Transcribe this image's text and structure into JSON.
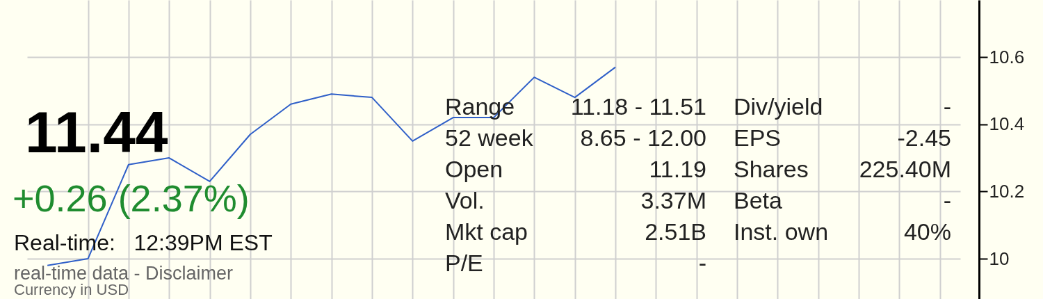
{
  "chart_data": {
    "type": "line",
    "title": "11.44",
    "subtitle": "+0.26 (2.37%)",
    "annotations": [
      "Real-time:   12:39PM EST",
      "real-time data - Disclaimer",
      "Currency in USD",
      "Range",
      "11.18 - 11.51",
      "Div/yield",
      "-",
      "52 week",
      "8.65 - 12.00",
      "EPS",
      "-2.45",
      "Open",
      "11.19",
      "Shares",
      "225.40M",
      "Vol.",
      "3.37M",
      "Beta",
      "-",
      "Mkt cap",
      "2.51B",
      "Inst. own",
      "40%",
      "P/E",
      "-"
    ],
    "categories": [
      null,
      null,
      null,
      null,
      null,
      null,
      null,
      null,
      null,
      null,
      null,
      null,
      null,
      null,
      null,
      null,
      null,
      null,
      null,
      null,
      null,
      null,
      null
    ],
    "series": [
      {
        "color": "#2f5fc8",
        "values": [
          9.98,
          10.0,
          10.28,
          10.3,
          10.23,
          10.37,
          10.46,
          10.49,
          10.48,
          10.35,
          10.42,
          10.42,
          10.54,
          10.48,
          10.57,
          null,
          null,
          null,
          null,
          null,
          null,
          null,
          null
        ]
      }
    ],
    "ylim": [
      9.88,
      10.77
    ],
    "yticks": [
      10,
      10.2,
      10.4,
      10.6
    ],
    "grid": true,
    "tick_labels": "y",
    "marker": "none",
    "line_style": "solid"
  }
}
